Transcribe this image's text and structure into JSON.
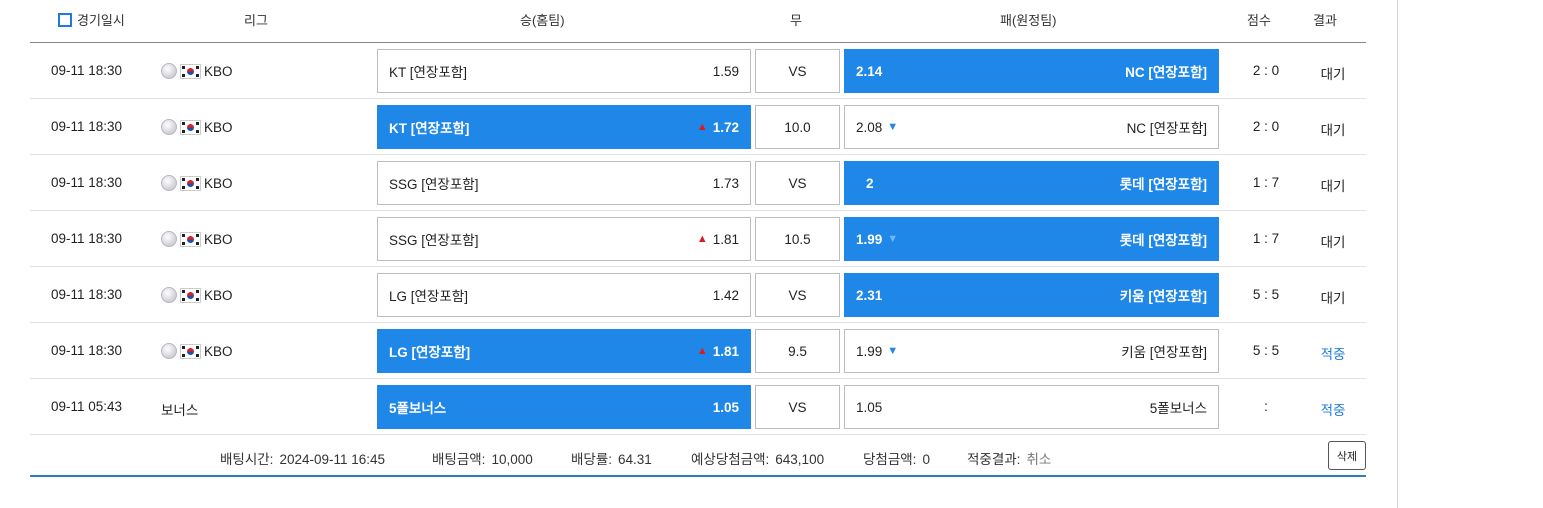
{
  "header": {
    "date_label": "경기일시",
    "league_label": "리그",
    "win_label": "승(홈팀)",
    "draw_label": "무",
    "lose_label": "패(원정팀)",
    "score_label": "점수",
    "result_label": "결과"
  },
  "rows": [
    {
      "date": "09-11 18:30",
      "league": "KBO",
      "home_team": "KT [연장포함]",
      "home_odds": "1.59",
      "draw": "VS",
      "away_odds": "2.14",
      "away_team": "NC [연장포함]",
      "score": "2 : 0",
      "result": "대기"
    },
    {
      "date": "09-11 18:30",
      "league": "KBO",
      "home_team": "KT [연장포함]",
      "home_odds": "1.72",
      "draw": "10.0",
      "away_odds": "2.08",
      "away_team": "NC [연장포함]",
      "score": "2 : 0",
      "result": "대기"
    },
    {
      "date": "09-11 18:30",
      "league": "KBO",
      "home_team": "SSG [연장포함]",
      "home_odds": "1.73",
      "draw": "VS",
      "away_odds": "2",
      "away_team": "롯데 [연장포함]",
      "score": "1 : 7",
      "result": "대기"
    },
    {
      "date": "09-11 18:30",
      "league": "KBO",
      "home_team": "SSG [연장포함]",
      "home_odds": "1.81",
      "draw": "10.5",
      "away_odds": "1.99",
      "away_team": "롯데 [연장포함]",
      "score": "1 : 7",
      "result": "대기"
    },
    {
      "date": "09-11 18:30",
      "league": "KBO",
      "home_team": "LG [연장포함]",
      "home_odds": "1.42",
      "draw": "VS",
      "away_odds": "2.31",
      "away_team": "키움 [연장포함]",
      "score": "5 : 5",
      "result": "대기"
    },
    {
      "date": "09-11 18:30",
      "league": "KBO",
      "home_team": "LG [연장포함]",
      "home_odds": "1.81",
      "draw": "9.5",
      "away_odds": "1.99",
      "away_team": "키움 [연장포함]",
      "score": "5 : 5",
      "result": "적중"
    },
    {
      "date": "09-11 05:43",
      "league": "보너스",
      "home_team": "5폴보너스",
      "home_odds": "1.05",
      "draw": "VS",
      "away_odds": "1.05",
      "away_team": "5폴보너스",
      "score": ":",
      "result": "적중"
    }
  ],
  "summary": {
    "bet_time_label": "배팅시간:",
    "bet_time": "2024-09-11 16:45",
    "bet_amount_label": "배팅금액:",
    "bet_amount": "10,000",
    "odds_label": "배당률:",
    "odds": "64.31",
    "expected_label": "예상당첨금액:",
    "expected": "643,100",
    "win_amount_label": "당첨금액:",
    "win_amount": "0",
    "result_label": "적중결과:",
    "result": "취소",
    "delete_label": "삭제"
  },
  "colors": {
    "selected": "#1e87e8",
    "hit": "#1e7ae3",
    "up_arrow": "#d91d1d",
    "down_arrow": "#1e87e8"
  }
}
